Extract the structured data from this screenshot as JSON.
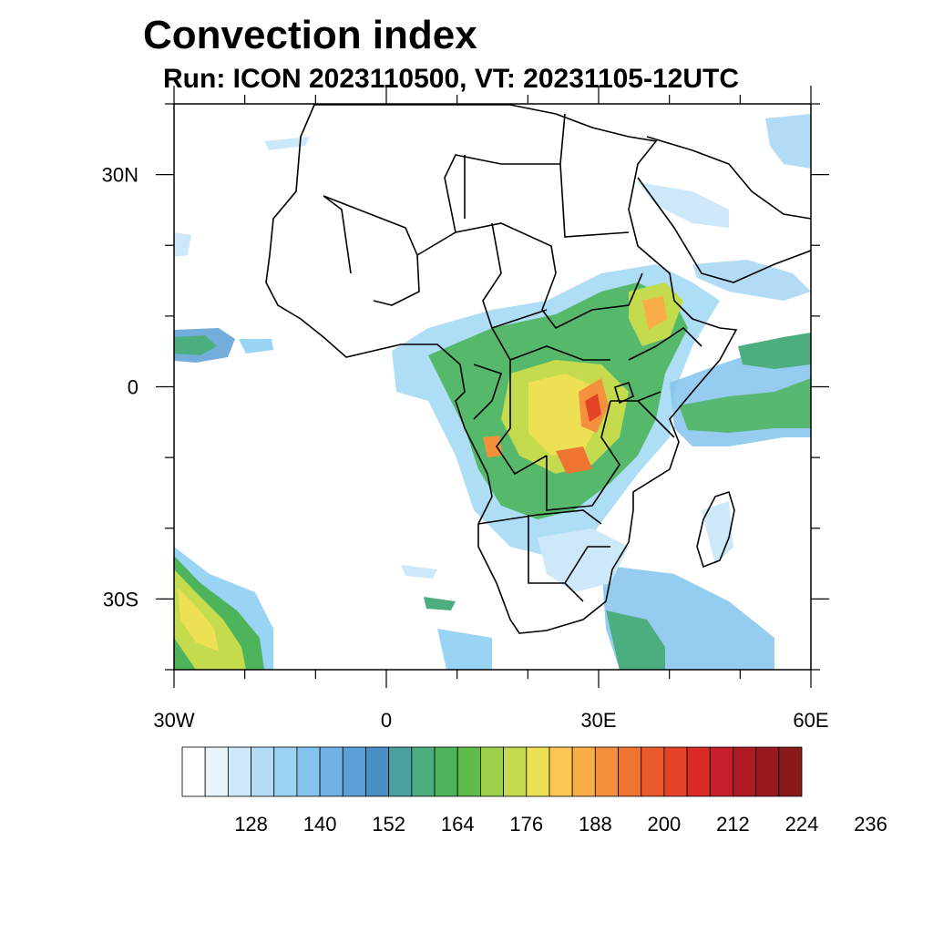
{
  "title": "Convection index",
  "subtitle": "Run: ICON 2023110500,  VT: 20231105-12UTC",
  "map": {
    "extent": {
      "lon_min": -30,
      "lon_max": 60,
      "lat_min": -40,
      "lat_max": 40
    },
    "lat_ticks": [
      {
        "value": 30,
        "label": "30N"
      },
      {
        "value": 0,
        "label": "0"
      },
      {
        "value": -30,
        "label": "30S"
      }
    ],
    "lon_ticks": [
      {
        "value": -30,
        "label": "30W"
      },
      {
        "value": 0,
        "label": "0"
      },
      {
        "value": 30,
        "label": "30E"
      },
      {
        "value": 60,
        "label": "60E"
      }
    ],
    "minor_lat_step": 10,
    "minor_lon_step": 10
  },
  "colorbar": {
    "colors": [
      "#ffffff",
      "#e8f4fc",
      "#cde8f8",
      "#b2dcf5",
      "#9ad4f4",
      "#83c3ec",
      "#6fb2e3",
      "#5a9fd6",
      "#4a90c4",
      "#4aa0a0",
      "#4cae7e",
      "#4db45c",
      "#5fbc4a",
      "#9ccf4c",
      "#c5db4e",
      "#ede054",
      "#fcc750",
      "#f9ad47",
      "#f5913d",
      "#ef7331",
      "#ea5a2b",
      "#e34428",
      "#d92a28",
      "#c41f2a",
      "#af1a24",
      "#9a1820",
      "#8a1a1a"
    ],
    "labels": [
      "128",
      "140",
      "152",
      "164",
      "176",
      "188",
      "200",
      "212",
      "224",
      "236"
    ]
  }
}
